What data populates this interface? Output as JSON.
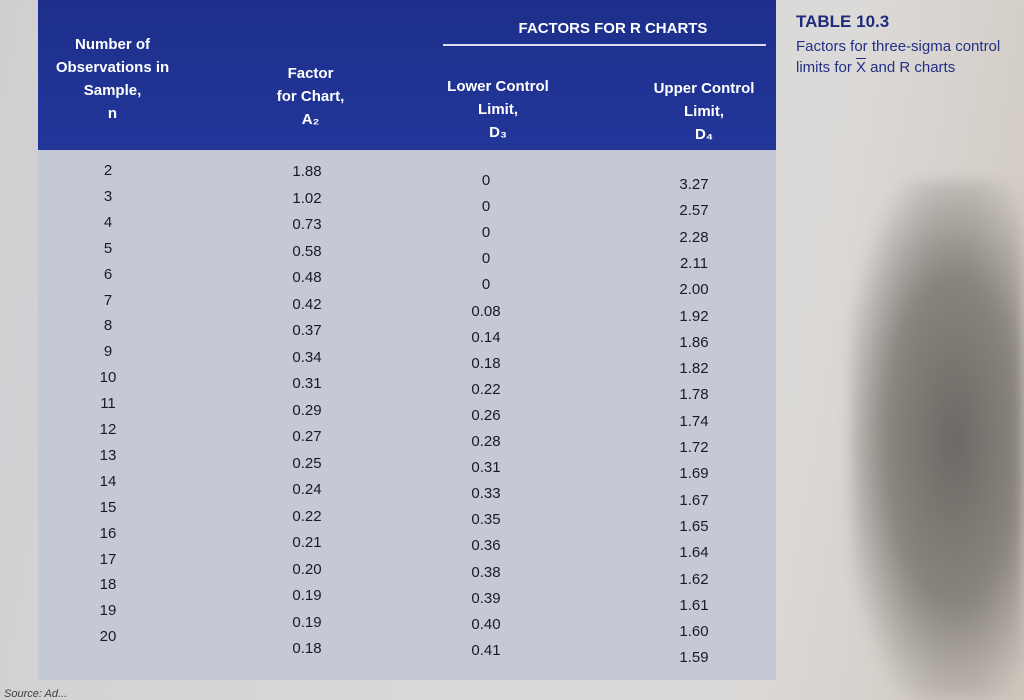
{
  "table": {
    "group_title": "FACTORS FOR R CHARTS",
    "headers": {
      "n": "Number of\nObservations in\nSample,\nn",
      "a2": "Factor\nfor Chart,\nA₂",
      "d3": "Lower Control\nLimit,\nD₃",
      "d4": "Upper Control\nLimit,\nD₄"
    },
    "rows": [
      {
        "n": "2",
        "a2": "1.88",
        "d3": "0",
        "d4": "3.27"
      },
      {
        "n": "3",
        "a2": "1.02",
        "d3": "0",
        "d4": "2.57"
      },
      {
        "n": "4",
        "a2": "0.73",
        "d3": "0",
        "d4": "2.28"
      },
      {
        "n": "5",
        "a2": "0.58",
        "d3": "0",
        "d4": "2.11"
      },
      {
        "n": "6",
        "a2": "0.48",
        "d3": "0",
        "d4": "2.00"
      },
      {
        "n": "7",
        "a2": "0.42",
        "d3": "0.08",
        "d4": "1.92"
      },
      {
        "n": "8",
        "a2": "0.37",
        "d3": "0.14",
        "d4": "1.86"
      },
      {
        "n": "9",
        "a2": "0.34",
        "d3": "0.18",
        "d4": "1.82"
      },
      {
        "n": "10",
        "a2": "0.31",
        "d3": "0.22",
        "d4": "1.78"
      },
      {
        "n": "11",
        "a2": "0.29",
        "d3": "0.26",
        "d4": "1.74"
      },
      {
        "n": "12",
        "a2": "0.27",
        "d3": "0.28",
        "d4": "1.72"
      },
      {
        "n": "13",
        "a2": "0.25",
        "d3": "0.31",
        "d4": "1.69"
      },
      {
        "n": "14",
        "a2": "0.24",
        "d3": "0.33",
        "d4": "1.67"
      },
      {
        "n": "15",
        "a2": "0.22",
        "d3": "0.35",
        "d4": "1.65"
      },
      {
        "n": "16",
        "a2": "0.21",
        "d3": "0.36",
        "d4": "1.64"
      },
      {
        "n": "17",
        "a2": "0.20",
        "d3": "0.38",
        "d4": "1.62"
      },
      {
        "n": "18",
        "a2": "0.19",
        "d3": "0.39",
        "d4": "1.61"
      },
      {
        "n": "19",
        "a2": "0.19",
        "d3": "0.40",
        "d4": "1.60"
      },
      {
        "n": "20",
        "a2": "0.18",
        "d3": "0.41",
        "d4": "1.59"
      }
    ]
  },
  "caption": {
    "title": "TABLE 10.3",
    "text_before": "Factors for three-sigma control limits for ",
    "xbar": "X",
    "text_after": " and R charts"
  },
  "source_fragment": "Source: Ad...",
  "colors": {
    "header_bg": "#22369a",
    "body_bg": "#c5c9d6",
    "caption": "#233086"
  }
}
